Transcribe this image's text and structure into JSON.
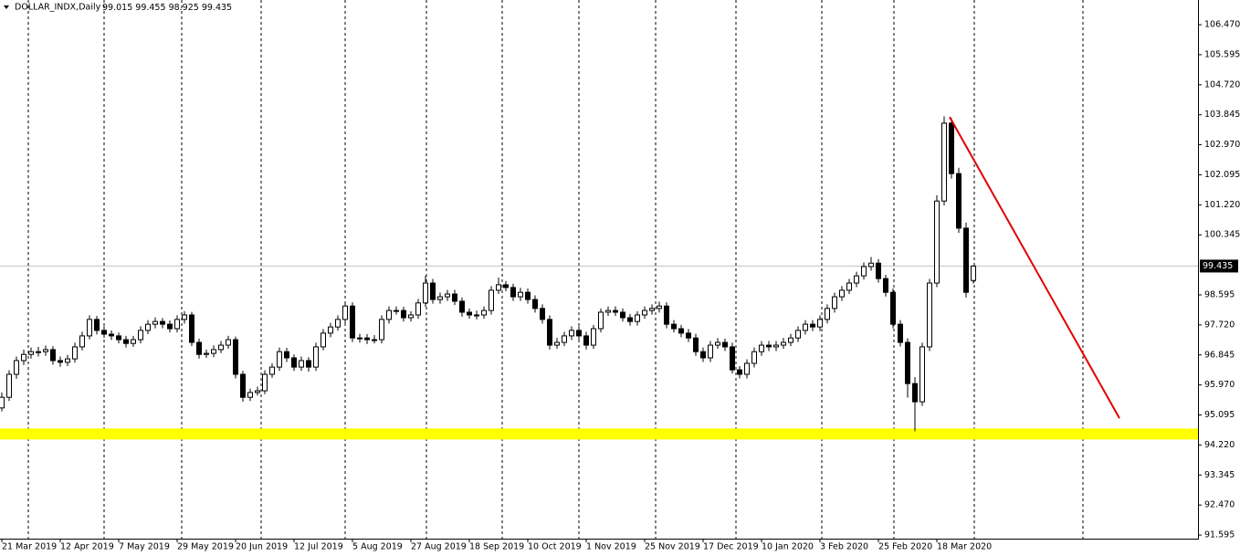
{
  "header": {
    "symbol": "DOLLAR_INDX,Daily"
  },
  "chart_data": {
    "type": "candlestick",
    "open": [
      95.3,
      95.61,
      96.28,
      96.68,
      96.86,
      96.94,
      96.94,
      97.0,
      96.68,
      96.63,
      96.73,
      97.08,
      97.4,
      97.88,
      97.56,
      97.45,
      97.4,
      97.29,
      97.18,
      97.29,
      97.56,
      97.74,
      97.82,
      97.74,
      97.61,
      97.88,
      98.01,
      97.21,
      96.86,
      96.89,
      97.0,
      97.13,
      97.29,
      96.28,
      95.61,
      95.75,
      95.8,
      96.28,
      96.49,
      96.94,
      96.76,
      96.49,
      96.68,
      96.49,
      97.08,
      97.48,
      97.66,
      97.88,
      98.27,
      97.34,
      97.34,
      97.29,
      97.29,
      97.88,
      98.14,
      98.14,
      97.93,
      98.01,
      98.36,
      98.94,
      98.46,
      98.54,
      98.62,
      98.41,
      98.09,
      98.01,
      98.01,
      98.14,
      98.73,
      98.89,
      98.81,
      98.54,
      98.67,
      98.46,
      98.2,
      97.88,
      97.13,
      97.21,
      97.4,
      97.56,
      97.4,
      97.13,
      97.61,
      98.09,
      98.14,
      98.09,
      97.93,
      97.82,
      98.01,
      98.14,
      98.2,
      98.27,
      97.74,
      97.61,
      97.48,
      97.34,
      96.94,
      96.76,
      97.13,
      97.21,
      97.08,
      96.41,
      96.28,
      96.6,
      96.94,
      97.13,
      97.08,
      97.13,
      97.21,
      97.34,
      97.56,
      97.74,
      97.66,
      97.88,
      98.2,
      98.54,
      98.73,
      98.94,
      99.15,
      99.42,
      99.52,
      99.07,
      98.67,
      97.74,
      97.21,
      96.01,
      95.48,
      97.08,
      98.94,
      101.33,
      103.6,
      102.13,
      100.54,
      99.015
    ],
    "high": [
      95.75,
      96.4,
      96.8,
      97.0,
      97.06,
      97.08,
      97.12,
      97.1,
      96.8,
      96.85,
      97.2,
      97.52,
      98.0,
      97.98,
      97.68,
      97.56,
      97.5,
      97.4,
      97.4,
      97.68,
      97.86,
      97.94,
      97.92,
      97.85,
      98.0,
      98.12,
      98.1,
      97.32,
      97.0,
      97.12,
      97.25,
      97.4,
      97.38,
      96.38,
      95.86,
      95.92,
      96.4,
      96.6,
      97.06,
      97.05,
      96.86,
      96.8,
      96.78,
      97.2,
      97.6,
      97.78,
      98.0,
      98.4,
      98.38,
      97.46,
      97.45,
      97.42,
      98.0,
      98.26,
      98.26,
      98.25,
      98.12,
      98.48,
      99.15,
      99.06,
      98.66,
      98.74,
      98.74,
      98.52,
      98.2,
      98.14,
      98.26,
      98.85,
      99.1,
      99.0,
      98.92,
      98.8,
      98.78,
      98.58,
      98.32,
      98.0,
      97.34,
      97.52,
      97.68,
      97.68,
      97.52,
      97.72,
      98.2,
      98.26,
      98.26,
      98.2,
      98.04,
      98.12,
      98.26,
      98.32,
      98.4,
      98.38,
      97.86,
      97.72,
      97.6,
      97.46,
      97.06,
      97.25,
      97.34,
      97.32,
      97.2,
      96.52,
      96.72,
      97.06,
      97.25,
      97.25,
      97.25,
      97.34,
      97.46,
      97.68,
      97.86,
      97.86,
      98.0,
      98.32,
      98.66,
      98.85,
      99.06,
      99.27,
      99.54,
      99.7,
      99.64,
      99.18,
      98.78,
      97.86,
      97.33,
      96.2,
      97.2,
      99.06,
      101.5,
      103.8,
      103.75,
      102.3,
      100.7,
      99.455
    ],
    "low": [
      95.2,
      95.5,
      96.15,
      96.55,
      96.74,
      96.8,
      96.82,
      96.56,
      96.5,
      96.52,
      96.62,
      96.98,
      97.3,
      97.44,
      97.34,
      97.28,
      97.18,
      97.06,
      97.08,
      97.18,
      97.45,
      97.62,
      97.62,
      97.5,
      97.5,
      97.76,
      97.1,
      96.74,
      96.76,
      96.78,
      96.9,
      97.02,
      96.16,
      95.48,
      95.5,
      95.66,
      95.7,
      96.18,
      96.38,
      96.64,
      96.38,
      96.38,
      96.36,
      96.38,
      96.98,
      97.36,
      97.55,
      97.76,
      97.22,
      97.2,
      97.16,
      97.18,
      97.18,
      97.76,
      98.02,
      97.82,
      97.82,
      97.9,
      98.25,
      98.34,
      98.34,
      98.42,
      98.3,
      97.96,
      97.9,
      97.88,
      97.9,
      98.02,
      98.62,
      98.7,
      98.42,
      98.42,
      98.34,
      98.08,
      97.76,
      97.0,
      97.02,
      97.1,
      97.28,
      97.28,
      97.0,
      97.02,
      97.5,
      97.98,
      97.98,
      97.82,
      97.7,
      97.7,
      97.9,
      98.02,
      98.08,
      97.62,
      97.5,
      97.36,
      97.22,
      96.82,
      96.64,
      96.64,
      97.02,
      96.96,
      96.3,
      96.16,
      96.16,
      96.48,
      96.82,
      96.96,
      96.96,
      97.02,
      97.1,
      97.22,
      97.44,
      97.54,
      97.54,
      97.76,
      98.08,
      98.42,
      98.62,
      98.82,
      99.04,
      99.3,
      98.95,
      98.55,
      97.62,
      97.09,
      95.6,
      94.62,
      95.36,
      96.96,
      98.82,
      101.2,
      101.98,
      100.4,
      98.52,
      98.925
    ],
    "close": [
      95.61,
      96.28,
      96.68,
      96.86,
      96.94,
      96.94,
      97.0,
      96.68,
      96.63,
      96.73,
      97.08,
      97.4,
      97.88,
      97.56,
      97.45,
      97.4,
      97.29,
      97.18,
      97.29,
      97.56,
      97.74,
      97.82,
      97.74,
      97.61,
      97.88,
      98.01,
      97.21,
      96.86,
      96.89,
      97.0,
      97.13,
      97.29,
      96.28,
      95.61,
      95.75,
      95.8,
      96.28,
      96.49,
      96.94,
      96.76,
      96.49,
      96.68,
      96.49,
      97.08,
      97.48,
      97.66,
      97.88,
      98.27,
      97.34,
      97.34,
      97.29,
      97.29,
      97.88,
      98.14,
      98.14,
      97.93,
      98.01,
      98.36,
      98.94,
      98.46,
      98.54,
      98.62,
      98.41,
      98.09,
      98.01,
      98.01,
      98.14,
      98.73,
      98.89,
      98.81,
      98.54,
      98.67,
      98.46,
      98.2,
      97.88,
      97.13,
      97.21,
      97.4,
      97.56,
      97.4,
      97.13,
      97.61,
      98.09,
      98.14,
      98.09,
      97.93,
      97.82,
      98.01,
      98.14,
      98.2,
      98.27,
      97.74,
      97.61,
      97.48,
      97.34,
      96.94,
      96.76,
      97.13,
      97.21,
      97.08,
      96.41,
      96.28,
      96.6,
      96.94,
      97.13,
      97.08,
      97.13,
      97.21,
      97.34,
      97.56,
      97.74,
      97.66,
      97.88,
      98.2,
      98.54,
      98.73,
      98.94,
      99.15,
      99.42,
      99.52,
      99.07,
      98.67,
      97.74,
      97.21,
      96.01,
      95.48,
      97.08,
      98.94,
      101.33,
      103.6,
      102.13,
      100.54,
      98.67,
      99.435
    ],
    "xlim": [
      -0.25,
      163.75
    ],
    "xticks": [
      {
        "value": 0,
        "label": "21 Mar 2019"
      },
      {
        "value": 8,
        "label": "12 Apr 2019"
      },
      {
        "value": 16,
        "label": "7 May 2019"
      },
      {
        "value": 24,
        "label": "29 May 2019"
      },
      {
        "value": 32,
        "label": "20 Jun 2019"
      },
      {
        "value": 40,
        "label": "12 Jul 2019"
      },
      {
        "value": 48,
        "label": "5 Aug 2019"
      },
      {
        "value": 56,
        "label": "27 Aug 2019"
      },
      {
        "value": 64,
        "label": "18 Sep 2019"
      },
      {
        "value": 72,
        "label": "10 Oct 2019"
      },
      {
        "value": 80,
        "label": "1 Nov 2019"
      },
      {
        "value": 88,
        "label": "25 Nov 2019"
      },
      {
        "value": 96,
        "label": "17 Dec 2019"
      },
      {
        "value": 104,
        "label": "10 Jan 2020"
      },
      {
        "value": 112,
        "label": "3 Feb 2020"
      },
      {
        "value": 120,
        "label": "25 Feb 2020"
      },
      {
        "value": 128,
        "label": "18 Mar 2020"
      }
    ],
    "ylim": [
      91.49,
      107.19
    ],
    "yticks": [
      {
        "value": 106.47,
        "label": "106.470"
      },
      {
        "value": 105.595,
        "label": "105.595"
      },
      {
        "value": 104.72,
        "label": "104.720"
      },
      {
        "value": 103.845,
        "label": "103.845"
      },
      {
        "value": 102.97,
        "label": "102.970"
      },
      {
        "value": 102.095,
        "label": "102.095"
      },
      {
        "value": 101.22,
        "label": "101.220"
      },
      {
        "value": 100.345,
        "label": "100.345"
      },
      {
        "value": 98.595,
        "label": "98.595"
      },
      {
        "value": 97.72,
        "label": "97.720"
      },
      {
        "value": 96.845,
        "label": "96.845"
      },
      {
        "value": 95.97,
        "label": "95.970"
      },
      {
        "value": 95.095,
        "label": "95.095"
      },
      {
        "value": 94.22,
        "label": "94.220"
      },
      {
        "value": 93.345,
        "label": "93.345"
      },
      {
        "value": 92.47,
        "label": "92.470"
      },
      {
        "value": 91.595,
        "label": "91.595"
      }
    ],
    "support_zone": {
      "y": [
        94.38,
        94.7
      ],
      "color": "#ffff00"
    },
    "trend_line": {
      "x": [
        129.75,
        153
      ],
      "y": [
        103.78,
        95.0
      ],
      "color": "#e00000"
    }
  }
}
